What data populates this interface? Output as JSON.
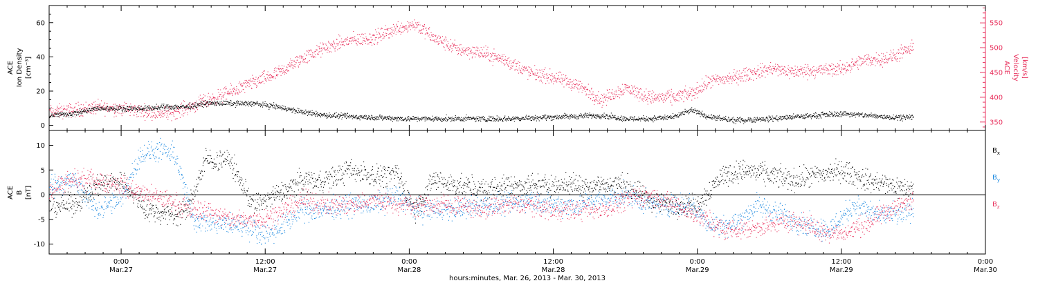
{
  "chart_data": [
    {
      "type": "scatter",
      "panel": "top",
      "xlabel": "hours:minutes, Mar. 26, 2013 - Mar. 30, 2013",
      "x_ticks": [
        {
          "time": "0:00",
          "date": "Mar.27",
          "hours": 24
        },
        {
          "time": "12:00",
          "date": "Mar.27",
          "hours": 36
        },
        {
          "time": "0:00",
          "date": "Mar.28",
          "hours": 48
        },
        {
          "time": "12:00",
          "date": "Mar.28",
          "hours": 60
        },
        {
          "time": "0:00",
          "date": "Mar.29",
          "hours": 72
        },
        {
          "time": "12:00",
          "date": "Mar.29",
          "hours": 84
        },
        {
          "time": "0:00",
          "date": "Mar.30",
          "hours": 96
        }
      ],
      "xlim_hours": [
        18,
        96
      ],
      "ylabel_left": [
        "ACE",
        "Ion Density",
        "[cm⁻³]"
      ],
      "ylabel_right": [
        "ACE",
        "Velocity",
        "[km/s]"
      ],
      "ylim_left": [
        -3,
        70
      ],
      "yticks_left": [
        0,
        20,
        40,
        60
      ],
      "ylim_right": [
        333,
        585
      ],
      "yticks_right": [
        350,
        400,
        450,
        500,
        550
      ],
      "series": [
        {
          "name": "Ion Density",
          "axis": "left",
          "color": "#000000",
          "points": [
            [
              18,
              6
            ],
            [
              20,
              7
            ],
            [
              22,
              10
            ],
            [
              24,
              10
            ],
            [
              26,
              10
            ],
            [
              28,
              11
            ],
            [
              29.5,
              11
            ],
            [
              31,
              13
            ],
            [
              33,
              13
            ],
            [
              35,
              13
            ],
            [
              37,
              11
            ],
            [
              39,
              8
            ],
            [
              41,
              6
            ],
            [
              44,
              5
            ],
            [
              48,
              4
            ],
            [
              52,
              4
            ],
            [
              56,
              4
            ],
            [
              60,
              5
            ],
            [
              64,
              6
            ],
            [
              66,
              4
            ],
            [
              68,
              4
            ],
            [
              70,
              5
            ],
            [
              71.5,
              9
            ],
            [
              73,
              5
            ],
            [
              75,
              3
            ],
            [
              78,
              4
            ],
            [
              80,
              5
            ],
            [
              82,
              6
            ],
            [
              84,
              7
            ],
            [
              86,
              6
            ],
            [
              88,
              5
            ],
            [
              90,
              5
            ]
          ]
        },
        {
          "name": "Velocity",
          "axis": "right",
          "color": "#e8305c",
          "points": [
            [
              18,
              370
            ],
            [
              20,
              375
            ],
            [
              22,
              380
            ],
            [
              24,
              378
            ],
            [
              26,
              372
            ],
            [
              28,
              368
            ],
            [
              29.5,
              380
            ],
            [
              31,
              392
            ],
            [
              33,
              410
            ],
            [
              35,
              430
            ],
            [
              37,
              448
            ],
            [
              39,
              478
            ],
            [
              41,
              500
            ],
            [
              43,
              515
            ],
            [
              45,
              520
            ],
            [
              47,
              540
            ],
            [
              48.5,
              548
            ],
            [
              50,
              520
            ],
            [
              52,
              498
            ],
            [
              54,
              490
            ],
            [
              56,
              475
            ],
            [
              58,
              450
            ],
            [
              60,
              440
            ],
            [
              62,
              425
            ],
            [
              64,
              395
            ],
            [
              66,
              420
            ],
            [
              68,
              400
            ],
            [
              70,
              400
            ],
            [
              71.5,
              408
            ],
            [
              73,
              432
            ],
            [
              75,
              440
            ],
            [
              78,
              458
            ],
            [
              80,
              452
            ],
            [
              82,
              455
            ],
            [
              84,
              458
            ],
            [
              86,
              475
            ],
            [
              88,
              480
            ],
            [
              90,
              500
            ]
          ]
        }
      ]
    },
    {
      "type": "scatter",
      "panel": "bottom",
      "ylabel_left": [
        "ACE",
        "B",
        "[nT]"
      ],
      "ylim": [
        -12,
        13
      ],
      "yticks": [
        -10,
        -5,
        0,
        5,
        10
      ],
      "series": [
        {
          "name": "Bx",
          "legend_main": "B",
          "legend_sub": "x",
          "color": "#000000",
          "points": [
            [
              18,
              -2
            ],
            [
              20,
              -2
            ],
            [
              22,
              2
            ],
            [
              24,
              3
            ],
            [
              26,
              -3
            ],
            [
              28,
              -4
            ],
            [
              29.5,
              -3
            ],
            [
              31,
              7
            ],
            [
              33,
              7
            ],
            [
              35,
              -2
            ],
            [
              37,
              0
            ],
            [
              39,
              3
            ],
            [
              41,
              3
            ],
            [
              43,
              5
            ],
            [
              45,
              4
            ],
            [
              47,
              4
            ],
            [
              48.5,
              -3
            ],
            [
              50,
              3
            ],
            [
              52,
              2
            ],
            [
              54,
              1
            ],
            [
              56,
              2
            ],
            [
              58,
              2
            ],
            [
              60,
              2
            ],
            [
              62,
              2
            ],
            [
              64,
              2
            ],
            [
              66,
              2
            ],
            [
              68,
              -1
            ],
            [
              70,
              -2
            ],
            [
              72,
              -2
            ],
            [
              74,
              4
            ],
            [
              76,
              5
            ],
            [
              78,
              4
            ],
            [
              80,
              3
            ],
            [
              82,
              4
            ],
            [
              84,
              5
            ],
            [
              86,
              3
            ],
            [
              88,
              2
            ],
            [
              90,
              1
            ]
          ]
        },
        {
          "name": "By",
          "legend_main": "B",
          "legend_sub": "y",
          "color": "#1a88e0",
          "points": [
            [
              18,
              2
            ],
            [
              20,
              3
            ],
            [
              22,
              -3
            ],
            [
              24,
              -1
            ],
            [
              25.5,
              8
            ],
            [
              27,
              9
            ],
            [
              28.5,
              8
            ],
            [
              30,
              -5
            ],
            [
              32,
              -6
            ],
            [
              34,
              -6
            ],
            [
              36,
              -8
            ],
            [
              37,
              -7
            ],
            [
              39,
              -3
            ],
            [
              41,
              -3
            ],
            [
              43,
              -2
            ],
            [
              45,
              -2
            ],
            [
              47,
              0
            ],
            [
              48.5,
              -3
            ],
            [
              50,
              -3
            ],
            [
              52,
              -3
            ],
            [
              54,
              -2
            ],
            [
              56,
              -2
            ],
            [
              58,
              -1
            ],
            [
              60,
              -2
            ],
            [
              62,
              -2
            ],
            [
              64,
              -1
            ],
            [
              66,
              0
            ],
            [
              68,
              -2
            ],
            [
              70,
              -2
            ],
            [
              71.5,
              -2
            ],
            [
              73,
              -6
            ],
            [
              75,
              -6
            ],
            [
              77,
              -2
            ],
            [
              79,
              -4
            ],
            [
              81,
              -6
            ],
            [
              83,
              -7
            ],
            [
              85,
              -2
            ],
            [
              87,
              -4
            ],
            [
              89,
              -4
            ],
            [
              90,
              -3
            ]
          ]
        },
        {
          "name": "Bz",
          "legend_main": "B",
          "legend_sub": "z",
          "color": "#e8305c",
          "points": [
            [
              18,
              1
            ],
            [
              20,
              3
            ],
            [
              22,
              3
            ],
            [
              24,
              2
            ],
            [
              26,
              0
            ],
            [
              28,
              -1
            ],
            [
              29.5,
              -3
            ],
            [
              31,
              -3
            ],
            [
              33,
              -5
            ],
            [
              35,
              -5
            ],
            [
              37,
              -4
            ],
            [
              39,
              -1
            ],
            [
              41,
              -2
            ],
            [
              43,
              -2
            ],
            [
              45,
              -1
            ],
            [
              47,
              -2
            ],
            [
              48.5,
              -2
            ],
            [
              50,
              -2
            ],
            [
              52,
              -2
            ],
            [
              54,
              -3
            ],
            [
              56,
              -2
            ],
            [
              58,
              -2
            ],
            [
              60,
              -3
            ],
            [
              62,
              -3
            ],
            [
              64,
              -3
            ],
            [
              66,
              -1
            ],
            [
              68,
              0
            ],
            [
              70,
              -2
            ],
            [
              72,
              -4
            ],
            [
              74,
              -7
            ],
            [
              76,
              -7
            ],
            [
              78,
              -6
            ],
            [
              80,
              -5
            ],
            [
              82,
              -7
            ],
            [
              84,
              -8
            ],
            [
              86,
              -6
            ],
            [
              88,
              -3
            ],
            [
              90,
              -1
            ]
          ]
        }
      ]
    }
  ]
}
